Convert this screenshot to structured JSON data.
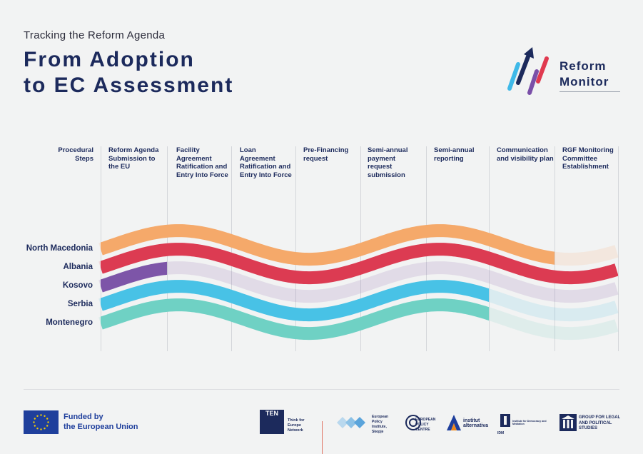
{
  "header": {
    "kicker": "Tracking the Reform Agenda",
    "title_line1": "From Adoption",
    "title_line2": "to EC Assessment"
  },
  "logo": {
    "line1": "Reform",
    "line2": "Monitor",
    "stripe_colors": [
      "#3fb9e8",
      "#1c2a5c",
      "#7a4fa8",
      "#e0394f"
    ]
  },
  "steps_header": "Procedural Steps",
  "steps": [
    "Reform Agenda Submission to the EU",
    "Facility Agreement Ratification and Entry Into Force",
    "Loan Agreement Ratification and Entry Into Force",
    "Pre-Financing request",
    "Semi-annual payment request submission",
    "Semi-annual reporting",
    "Communication and visibility plan",
    "RGF Monitoring Committee Establishment"
  ],
  "countries": [
    {
      "name": "North Macedonia",
      "color": "#f5a96a",
      "steps_completed": 7
    },
    {
      "name": "Albania",
      "color": "#dc3b52",
      "steps_completed": 8
    },
    {
      "name": "Kosovo",
      "color": "#7d55a8",
      "steps_completed": 1
    },
    {
      "name": "Serbia",
      "color": "#48c2e6",
      "steps_completed": 6
    },
    {
      "name": "Montenegro",
      "color": "#6fd1c4",
      "steps_completed": 6
    }
  ],
  "footer": {
    "eu_line1": "Funded by",
    "eu_line2": "the European Union",
    "partners": [
      {
        "icon": "ten-logo",
        "label_tag": "TEN",
        "text": "Think for Europe Network"
      },
      {
        "icon": "epi-logo",
        "text": "European Policy Institute, Skopje"
      },
      {
        "icon": "epc-logo",
        "text": "EUROPEAN POLICY CENTRE"
      },
      {
        "icon": "institut-alternativa-logo",
        "text": "institut alternativa"
      },
      {
        "icon": "idm-logo",
        "label_tag": "IDM",
        "text": "Institute for Democracy and Mediation"
      },
      {
        "icon": "glps-logo",
        "text": "GROUP FOR LEGAL AND POLITICAL STUDIES"
      }
    ]
  }
}
